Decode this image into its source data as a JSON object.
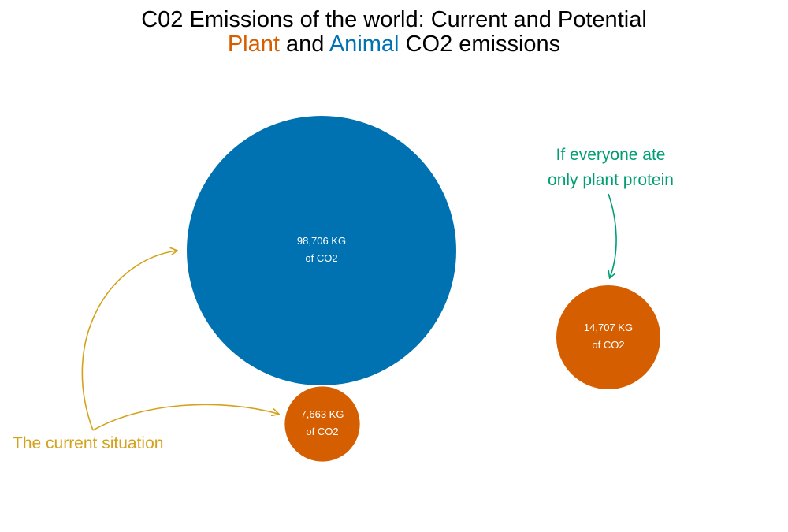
{
  "title": {
    "line1": "C02 Emissions of the world: Current and Potential",
    "line2_part1": "Plant",
    "line2_part2": "and",
    "line2_part3": "Animal",
    "line2_part4": "CO2 emissions"
  },
  "colors": {
    "plant": "#d55e00",
    "animal": "#0072b2",
    "current_annotation": "#d4a21a",
    "potential_annotation": "#009e73"
  },
  "chart_data": {
    "type": "bubble",
    "unit": "KG of CO2",
    "bubbles": [
      {
        "id": "current-animal",
        "group": "Current",
        "category": "Animal",
        "value": 98706,
        "label_line1": "98,706 KG",
        "label_line2": "of CO2"
      },
      {
        "id": "current-plant",
        "group": "Current",
        "category": "Plant",
        "value": 7663,
        "label_line1": "7,663 KG",
        "label_line2": "of CO2"
      },
      {
        "id": "potential-plant",
        "group": "Potential",
        "category": "Plant",
        "value": 14707,
        "label_line1": "14,707 KG",
        "label_line2": "of CO2"
      }
    ],
    "annotations": {
      "current": "The current situation",
      "potential_line1": "If everyone ate",
      "potential_line2": "only plant protein"
    }
  }
}
